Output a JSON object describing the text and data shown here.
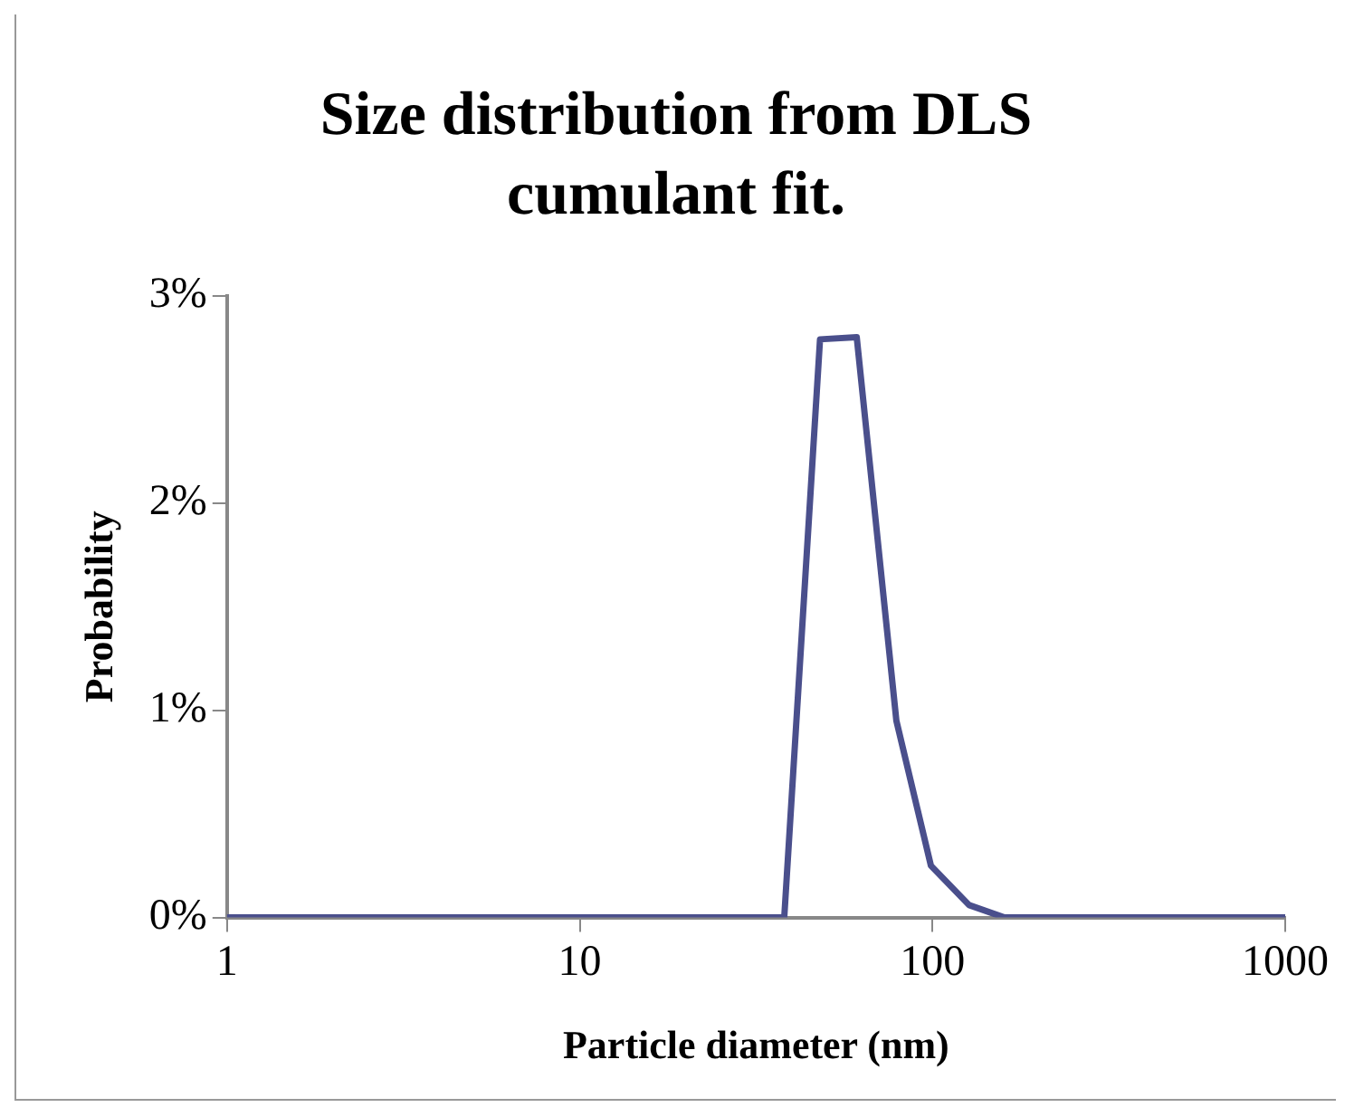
{
  "chart_data": {
    "type": "line",
    "title": "Size distribution  from DLS cumulant fit.",
    "xlabel": "Particle diameter (nm)",
    "ylabel": "Probability",
    "x": [
      1,
      38,
      48,
      61,
      79,
      99,
      127,
      160,
      1000
    ],
    "series": [
      {
        "color": "#4a4f8c",
        "values": [
          0,
          0,
          0.0279,
          0.028,
          0.0095,
          0.0025,
          0.0006,
          0,
          0
        ]
      }
    ],
    "log": "x",
    "xlim": [
      1,
      1000
    ],
    "xticks": [
      1,
      10,
      100,
      1000
    ],
    "ylim": [
      0,
      0.03
    ],
    "yticks": [
      {
        "value": 0,
        "label": "0%"
      },
      {
        "value": 0.01,
        "label": "1%"
      },
      {
        "value": 0.02,
        "label": "2%"
      },
      {
        "value": 0.03,
        "label": "3%"
      }
    ],
    "grid": false,
    "legend": false,
    "marker": "none",
    "line_style": "solid"
  }
}
